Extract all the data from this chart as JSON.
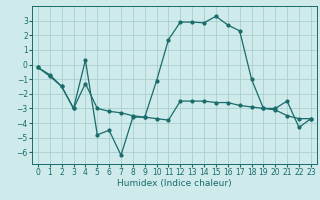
{
  "xlabel": "Humidex (Indice chaleur)",
  "bg_color": "#ceeaea",
  "grid_color": "#aacece",
  "line_color": "#1a6b6b",
  "line1_x": [
    0,
    1,
    2,
    3,
    4,
    5,
    6,
    7,
    8,
    9,
    10,
    11,
    12,
    13,
    14,
    15,
    16,
    17,
    18,
    19,
    20,
    21,
    22,
    23
  ],
  "line1_y": [
    -0.2,
    -0.7,
    -1.5,
    -3.0,
    0.3,
    -4.8,
    -4.5,
    -6.2,
    -3.6,
    -3.6,
    -1.1,
    1.7,
    2.9,
    2.9,
    2.85,
    3.3,
    2.7,
    2.3,
    -1.0,
    -3.0,
    -3.0,
    -2.5,
    -4.3,
    -3.7
  ],
  "line2_x": [
    0,
    1,
    2,
    3,
    4,
    5,
    6,
    7,
    8,
    9,
    10,
    11,
    12,
    13,
    14,
    15,
    16,
    17,
    18,
    19,
    20,
    21,
    22,
    23
  ],
  "line2_y": [
    -0.2,
    -0.8,
    -1.5,
    -3.0,
    -1.3,
    -3.0,
    -3.2,
    -3.3,
    -3.5,
    -3.6,
    -3.7,
    -3.8,
    -2.5,
    -2.5,
    -2.5,
    -2.6,
    -2.6,
    -2.8,
    -2.9,
    -3.0,
    -3.1,
    -3.5,
    -3.7,
    -3.7
  ],
  "xlim": [
    -0.5,
    23.5
  ],
  "ylim": [
    -6.8,
    4.0
  ],
  "yticks": [
    -6,
    -5,
    -4,
    -3,
    -2,
    -1,
    0,
    1,
    2,
    3
  ],
  "xticks": [
    0,
    1,
    2,
    3,
    4,
    5,
    6,
    7,
    8,
    9,
    10,
    11,
    12,
    13,
    14,
    15,
    16,
    17,
    18,
    19,
    20,
    21,
    22,
    23
  ],
  "xlabel_fontsize": 6.5,
  "tick_fontsize": 5.5,
  "linewidth": 0.9,
  "markersize": 2.0
}
